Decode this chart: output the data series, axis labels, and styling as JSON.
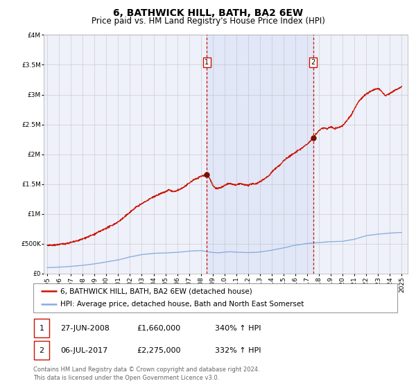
{
  "title": "6, BATHWICK HILL, BATH, BA2 6EW",
  "subtitle": "Price paid vs. HM Land Registry's House Price Index (HPI)",
  "ylim": [
    0,
    4000000
  ],
  "yticks": [
    0,
    500000,
    1000000,
    1500000,
    2000000,
    2500000,
    3000000,
    3500000,
    4000000
  ],
  "ytick_labels": [
    "£0",
    "£500K",
    "£1M",
    "£1.5M",
    "£2M",
    "£2.5M",
    "£3M",
    "£3.5M",
    "£4M"
  ],
  "xlim_start": 1994.7,
  "xlim_end": 2025.5,
  "xticks": [
    1995,
    1996,
    1997,
    1998,
    1999,
    2000,
    2001,
    2002,
    2003,
    2004,
    2005,
    2006,
    2007,
    2008,
    2009,
    2010,
    2011,
    2012,
    2013,
    2014,
    2015,
    2016,
    2017,
    2018,
    2019,
    2020,
    2021,
    2022,
    2023,
    2024,
    2025
  ],
  "xtick_labels": [
    "1995",
    "1996",
    "1997",
    "1998",
    "1999",
    "2000",
    "2001",
    "2002",
    "2003",
    "2004",
    "2005",
    "2006",
    "2007",
    "2008",
    "2009",
    "2010",
    "2011",
    "2012",
    "2013",
    "2014",
    "2015",
    "2016",
    "2017",
    "2018",
    "2019",
    "2020",
    "2021",
    "2022",
    "2023",
    "2024",
    "2025"
  ],
  "background_color": "#ffffff",
  "plot_bg_color": "#eef1fa",
  "grid_color": "#cccccc",
  "hpi_line_color": "#88aadd",
  "price_line_color": "#cc1100",
  "marker_color": "#771100",
  "vline_color": "#cc1100",
  "event1_x": 2008.49,
  "event1_y": 1660000,
  "event1_label": "1",
  "event2_x": 2017.51,
  "event2_y": 2275000,
  "event2_label": "2",
  "legend_line1": "6, BATHWICK HILL, BATH, BA2 6EW (detached house)",
  "legend_line2": "HPI: Average price, detached house, Bath and North East Somerset",
  "table_row1": [
    "1",
    "27-JUN-2008",
    "£1,660,000",
    "340% ↑ HPI"
  ],
  "table_row2": [
    "2",
    "06-JUL-2017",
    "£2,275,000",
    "332% ↑ HPI"
  ],
  "footnote1": "Contains HM Land Registry data © Crown copyright and database right 2024.",
  "footnote2": "This data is licensed under the Open Government Licence v3.0.",
  "title_fontsize": 10,
  "subtitle_fontsize": 8.5,
  "tick_fontsize": 6.5,
  "legend_fontsize": 7.5,
  "table_fontsize": 8,
  "footnote_fontsize": 6
}
